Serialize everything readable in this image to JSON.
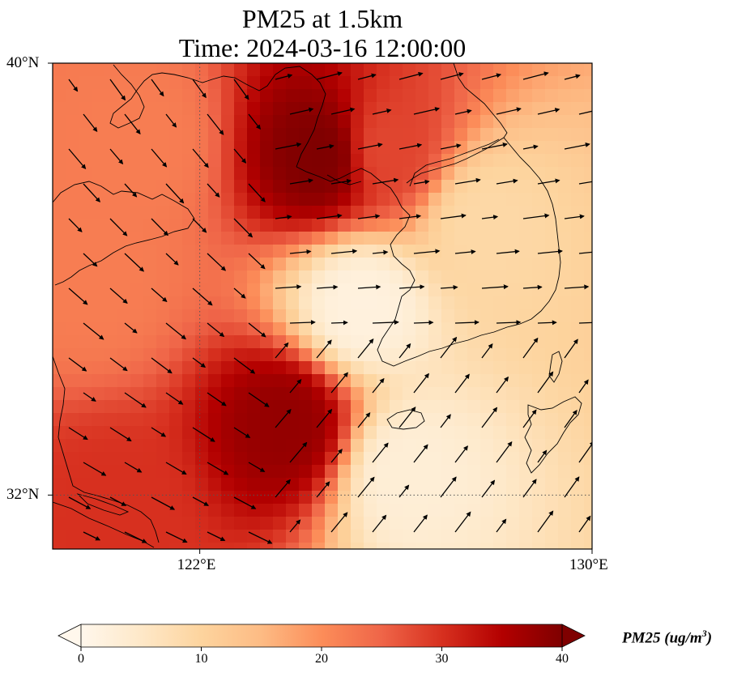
{
  "title": {
    "line1": "PM25 at 1.5km",
    "line2": "Time: 2024-03-16 12:00:00"
  },
  "map": {
    "extent": {
      "lon_min": 119,
      "lon_max": 130,
      "lat_min": 31,
      "lat_max": 40
    },
    "gridlines": {
      "lons": [
        122
      ],
      "lats": [
        32
      ],
      "style": "dotted"
    },
    "lat_labels": [
      {
        "lat": 40,
        "text": "40°N"
      },
      {
        "lat": 32,
        "text": "32°N"
      }
    ],
    "lon_labels": [
      {
        "lon": 122,
        "text": "122°E"
      },
      {
        "lon": 130,
        "text": "130°E"
      }
    ],
    "variable": "PM25",
    "level": "1.5km",
    "field_hotspots": [
      {
        "lon": 124.5,
        "lat": 38.3,
        "value": 40
      },
      {
        "lon": 125.8,
        "lat": 38.4,
        "value": 28
      },
      {
        "lon": 123.8,
        "lat": 33.3,
        "value": 38
      },
      {
        "lon": 120.2,
        "lat": 31.7,
        "value": 30
      },
      {
        "lon": 119.8,
        "lat": 36,
        "value": 22
      },
      {
        "lon": 120.8,
        "lat": 38.5,
        "value": 22
      },
      {
        "lon": 125.3,
        "lat": 35.5,
        "value": 2
      },
      {
        "lon": 126.2,
        "lat": 32.4,
        "value": 3
      },
      {
        "lon": 127.8,
        "lat": 37,
        "value": 9
      }
    ],
    "wind_vectors_visible": true
  },
  "colorbar": {
    "cmap": "OrRd",
    "min": 0,
    "max": 40,
    "extend": "both",
    "stops": [
      "#fff7ec",
      "#fee8c8",
      "#fdd49e",
      "#fdbb84",
      "#fc8d59",
      "#ef6548",
      "#d7301f",
      "#b30000",
      "#7f0000"
    ],
    "ticks": [
      0,
      10,
      20,
      30,
      40
    ],
    "tick_labels": [
      "0",
      "10",
      "20",
      "30",
      "40"
    ],
    "label": "PM25 (ug/m",
    "label_superscript": "3",
    "label_close": ")"
  }
}
